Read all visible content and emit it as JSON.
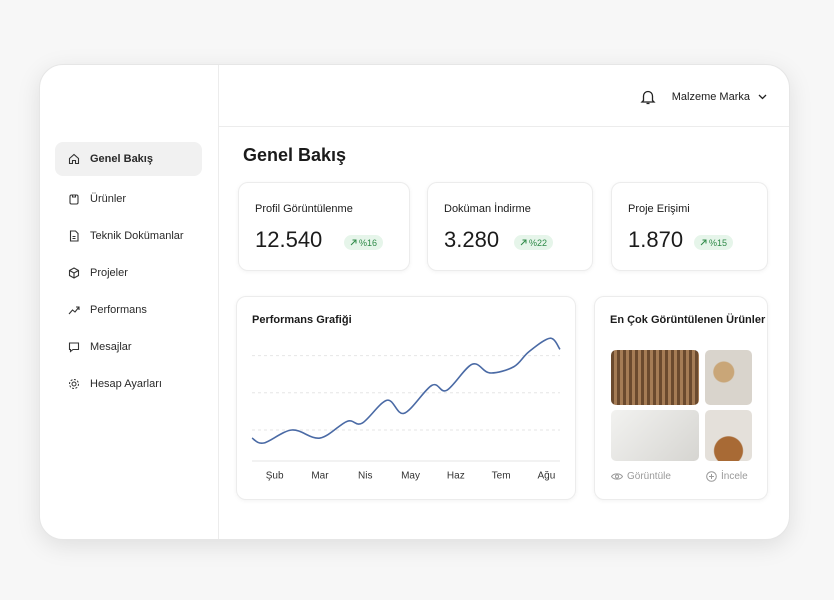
{
  "header": {
    "user": "Malzeme Marka"
  },
  "sidebar": {
    "items": [
      "Genel Bakış",
      "Ürünler",
      "Teknik Dokümanlar",
      "Projeler",
      "Performans",
      "Mesajlar",
      "Hesap Ayarları"
    ]
  },
  "page_title": "Genel Bakış",
  "stats": [
    {
      "label": "Profil Görüntülenme",
      "value": "12.540",
      "change": "%16"
    },
    {
      "label": "Doküman İndirme",
      "value": "3.280",
      "change": "%22"
    },
    {
      "label": "Proje Erişimi",
      "value": "1.870",
      "change": "%15"
    }
  ],
  "chart_data": {
    "type": "line",
    "title": "Performans Grafiği",
    "x": [
      -0.5,
      -0.24,
      0.38,
      1.0,
      1.6,
      1.93,
      2.48,
      2.86,
      3.47,
      3.8,
      4.36,
      4.75,
      5.28,
      5.61,
      6.08,
      6.3
    ],
    "series": [
      {
        "color": "#4a6aa5",
        "values": [
          18.5,
          14.5,
          25,
          18.5,
          32,
          30.5,
          49,
          38.5,
          61,
          57,
          78,
          71,
          76,
          88,
          99,
          90
        ]
      }
    ],
    "xlim": [
      -0.5,
      6.3
    ],
    "ylim": [
      0,
      100
    ],
    "xticks": [
      {
        "value": 0,
        "label": "Şub"
      },
      {
        "value": 1,
        "label": "Mar"
      },
      {
        "value": 2,
        "label": "Nis"
      },
      {
        "value": 3,
        "label": "May"
      },
      {
        "value": 4,
        "label": "Haz"
      },
      {
        "value": 5,
        "label": "Tem"
      },
      {
        "value": 6,
        "label": "Ağu"
      }
    ],
    "grid": true
  },
  "top_products": {
    "title": "En Çok Görüntülenen Ürünler",
    "actions": [
      "Görüntüle",
      "İncele"
    ]
  }
}
